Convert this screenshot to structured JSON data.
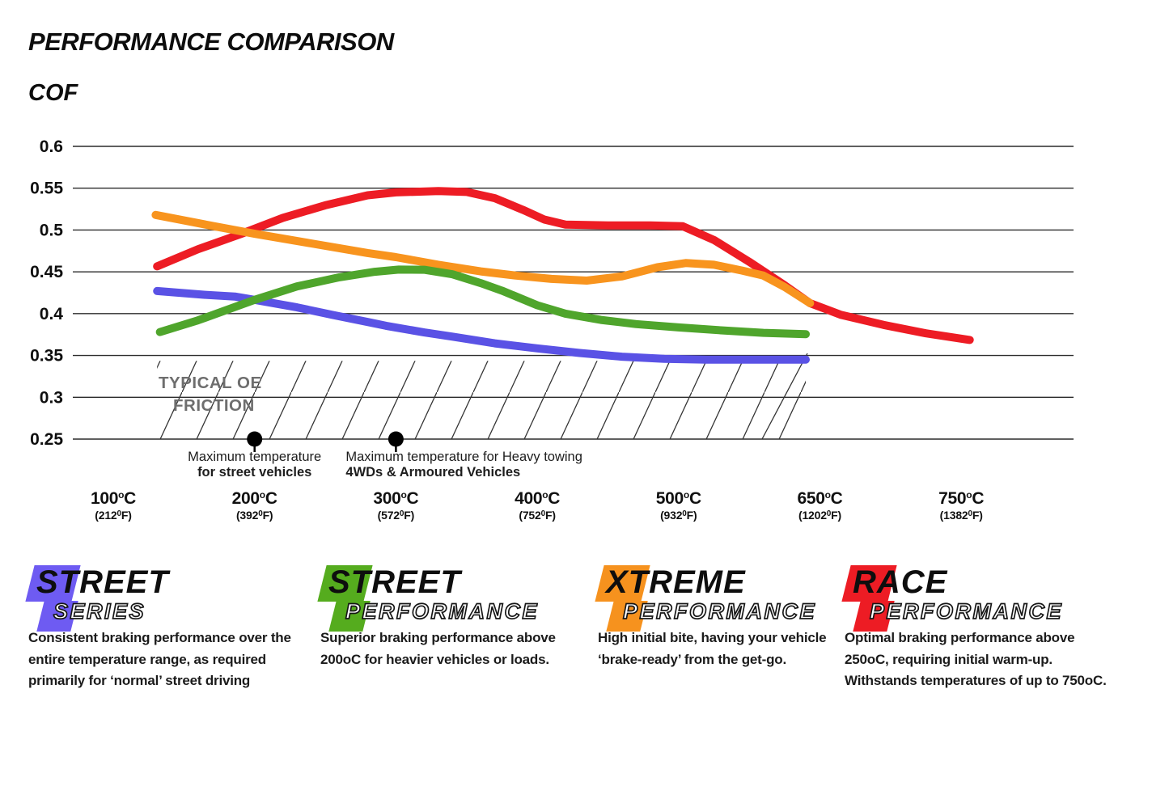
{
  "title": "PERFORMANCE COMPARISON",
  "y_axis_label": "COF",
  "units": {
    "c_suffix": "C",
    "f_suffix": "F",
    "c_sup": "o",
    "f_sup": "0"
  },
  "chart_data": {
    "type": "line",
    "title": "PERFORMANCE COMPARISON",
    "ylabel": "COF",
    "ylim": [
      0.25,
      0.6
    ],
    "grid": "horizontal",
    "y_ticks": [
      0.6,
      0.55,
      0.5,
      0.45,
      0.4,
      0.35,
      0.3,
      0.25
    ],
    "y_tick_labels": [
      "0.6",
      "0.55",
      "0.5",
      "0.45",
      "0.4",
      "0.35",
      "0.3",
      "0.25"
    ],
    "x_ticks": [
      {
        "t": 0,
        "c": "100",
        "f": "212"
      },
      {
        "t": 1,
        "c": "200",
        "f": "392"
      },
      {
        "t": 2,
        "c": "300",
        "f": "572"
      },
      {
        "t": 3,
        "c": "400",
        "f": "752"
      },
      {
        "t": 4,
        "c": "500",
        "f": "932"
      },
      {
        "t": 5,
        "c": "650",
        "f": "1202"
      },
      {
        "t": 6,
        "c": "750",
        "f": "1382"
      }
    ],
    "series": [
      {
        "name": "Race Performance",
        "color": "#ED1C24",
        "points": [
          [
            0.31,
            0.4565
          ],
          [
            0.6,
            0.477
          ],
          [
            0.9,
            0.495
          ],
          [
            1.2,
            0.5145
          ],
          [
            1.5,
            0.5295
          ],
          [
            1.8,
            0.5415
          ],
          [
            2.0,
            0.545
          ],
          [
            2.3,
            0.5465
          ],
          [
            2.5,
            0.5455
          ],
          [
            2.7,
            0.538
          ],
          [
            2.9,
            0.524
          ],
          [
            3.05,
            0.5125
          ],
          [
            3.2,
            0.5065
          ],
          [
            3.5,
            0.5055
          ],
          [
            3.8,
            0.5055
          ],
          [
            4.03,
            0.5045
          ],
          [
            4.25,
            0.488
          ],
          [
            4.5,
            0.462
          ],
          [
            4.75,
            0.434
          ],
          [
            4.93,
            0.4125
          ],
          [
            5.15,
            0.3985
          ],
          [
            5.45,
            0.3865
          ],
          [
            5.75,
            0.3765
          ],
          [
            6.06,
            0.3685
          ]
        ]
      },
      {
        "name": "Xtreme Performance",
        "color": "#F8941E",
        "points": [
          [
            0.3,
            0.518
          ],
          [
            0.7,
            0.505
          ],
          [
            1.0,
            0.4955
          ],
          [
            1.4,
            0.484
          ],
          [
            1.8,
            0.4725
          ],
          [
            2.0,
            0.4675
          ],
          [
            2.3,
            0.4585
          ],
          [
            2.6,
            0.4505
          ],
          [
            2.85,
            0.4455
          ],
          [
            3.1,
            0.4415
          ],
          [
            3.35,
            0.4395
          ],
          [
            3.6,
            0.4445
          ],
          [
            3.85,
            0.4555
          ],
          [
            4.05,
            0.4605
          ],
          [
            4.25,
            0.4585
          ],
          [
            4.45,
            0.4515
          ],
          [
            4.6,
            0.4455
          ],
          [
            4.75,
            0.432
          ],
          [
            4.93,
            0.4125
          ]
        ]
      },
      {
        "name": "Street Series",
        "color": "#5A52E5",
        "points": [
          [
            0.31,
            0.427
          ],
          [
            0.65,
            0.4225
          ],
          [
            0.86,
            0.4205
          ],
          [
            1.0,
            0.4165
          ],
          [
            1.3,
            0.4075
          ],
          [
            1.55,
            0.3985
          ],
          [
            1.8,
            0.39
          ],
          [
            1.93,
            0.3855
          ],
          [
            2.2,
            0.3775
          ],
          [
            2.4,
            0.3725
          ],
          [
            2.7,
            0.3645
          ],
          [
            3.0,
            0.3585
          ],
          [
            3.3,
            0.353
          ],
          [
            3.6,
            0.3485
          ],
          [
            3.9,
            0.346
          ],
          [
            4.2,
            0.345
          ],
          [
            4.55,
            0.345
          ],
          [
            4.9,
            0.345
          ]
        ]
      },
      {
        "name": "Street Performance",
        "color": "#4FA52C",
        "points": [
          [
            0.33,
            0.378
          ],
          [
            0.6,
            0.392
          ],
          [
            1.0,
            0.4165
          ],
          [
            1.3,
            0.4325
          ],
          [
            1.6,
            0.4435
          ],
          [
            1.85,
            0.45
          ],
          [
            2.02,
            0.4527
          ],
          [
            2.2,
            0.4525
          ],
          [
            2.4,
            0.447
          ],
          [
            2.6,
            0.4365
          ],
          [
            2.75,
            0.4275
          ],
          [
            3.0,
            0.41
          ],
          [
            3.2,
            0.4
          ],
          [
            3.45,
            0.3925
          ],
          [
            3.7,
            0.3875
          ],
          [
            4.0,
            0.3835
          ],
          [
            4.3,
            0.38
          ],
          [
            4.6,
            0.377
          ],
          [
            4.9,
            0.3755
          ]
        ]
      }
    ],
    "oe_band": {
      "lines": [
        "TYPICAL OE",
        "FRICTION"
      ],
      "t_start": 0.31,
      "t_end": 4.9,
      "cof_top": 0.3435,
      "cof_bottom": 0.25,
      "label_color": "#6e6e6e"
    },
    "annotations": [
      {
        "t": 1,
        "cof": 0.25,
        "align": "center",
        "dx": 0,
        "lines": [
          {
            "text": "Maximum temperature",
            "bold": false
          },
          {
            "text": "for street vehicles",
            "bold": true
          }
        ]
      },
      {
        "t": 2,
        "cof": 0.25,
        "align": "left",
        "dx": -62,
        "lines": [
          {
            "text": "Maximum temperature for Heavy towing",
            "bold": false
          },
          {
            "text": "4WDs & Armoured Vehicles",
            "bold": true
          }
        ]
      }
    ]
  },
  "legend": [
    {
      "word1": "STREET",
      "word2": "SERIES",
      "color": "#6E5BF2",
      "description": "Consistent braking performance over the entire temperature range, as required primarily for ‘normal’ street driving"
    },
    {
      "word1": "STREET",
      "word2": "PERFORMANCE",
      "color": "#55AC1E",
      "description": "Superior braking performance above 200oC for heavier vehicles or loads."
    },
    {
      "word1": "XTREME",
      "word2": "PERFORMANCE",
      "color": "#F6921E",
      "description": "High initial bite, having your vehicle ‘brake-ready’ from the get-go."
    },
    {
      "word1": "RACE",
      "word2": "PERFORMANCE",
      "color": "#ED1C24",
      "description": "Optimal braking performance above 250oC, requiring initial warm-up. Withstands temperatures of up to 750oC."
    }
  ]
}
